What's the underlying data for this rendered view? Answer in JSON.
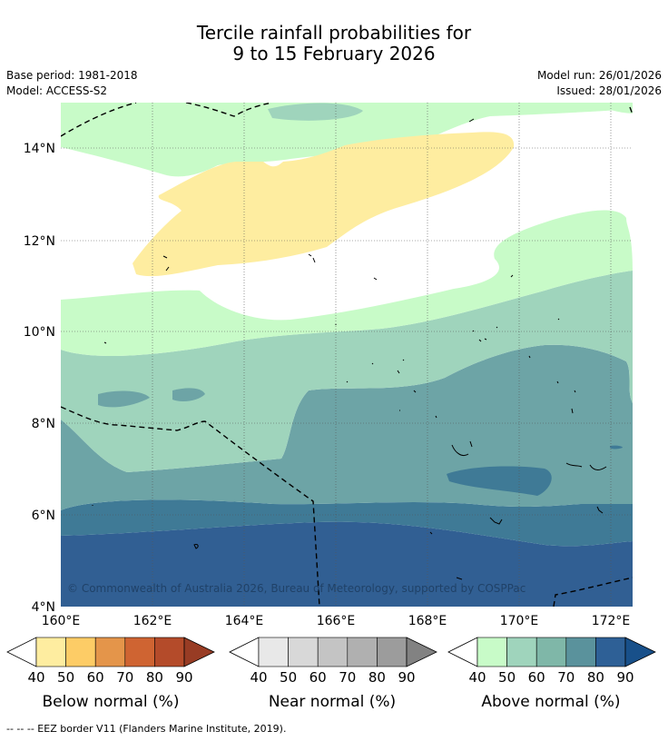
{
  "header": {
    "title_line1": "Tercile rainfall probabilities for",
    "title_line2": "9 to 15 February 2026",
    "base_period": "Base period: 1981-2018",
    "model": "Model: ACCESS-S2",
    "model_run": "Model run: 26/01/2026",
    "issued": "Issued: 28/01/2026"
  },
  "map": {
    "lat_labels": [
      "14°N",
      "12°N",
      "10°N",
      "8°N",
      "6°N",
      "4°N"
    ],
    "lon_labels": [
      "160°E",
      "162°E",
      "164°E",
      "166°E",
      "168°E",
      "170°E",
      "172°E"
    ],
    "copyright": "© Commonwealth of Australia 2026, Bureau of Meteorology, supported by COSPPac"
  },
  "colorbars": [
    {
      "name": "below",
      "title": "Below normal (%)",
      "ticks": [
        "40",
        "50",
        "60",
        "70",
        "80",
        "90"
      ],
      "under_color": "#ffffff",
      "colors": [
        "#feeda0",
        "#fdcc66",
        "#e4954a",
        "#cf6432",
        "#b44b2a"
      ],
      "over_color": "#983c24"
    },
    {
      "name": "near",
      "title": "Near normal (%)",
      "ticks": [
        "40",
        "50",
        "60",
        "70",
        "80",
        "90"
      ],
      "under_color": "#ffffff",
      "colors": [
        "#e8e8e8",
        "#d8d8d8",
        "#c4c4c4",
        "#b0b0b0",
        "#9c9c9c"
      ],
      "over_color": "#828282"
    },
    {
      "name": "above",
      "title": "Above normal (%)",
      "ticks": [
        "40",
        "50",
        "60",
        "70",
        "80",
        "90"
      ],
      "under_color": "#ffffff",
      "colors": [
        "#c8fbc8",
        "#9fd4bc",
        "#7fb7a8",
        "#5a929c",
        "#2e6096"
      ],
      "over_color": "#18508a"
    }
  ],
  "footnote": "--  --  -- EEZ border V11 (Flanders Marine Institute, 2019).",
  "palette": {
    "above_40": "#c8fbc8",
    "above_50": "#9fd4bc",
    "above_60": "#6da4a6",
    "above_70": "#3f7a96",
    "above_80": "#315f93",
    "below_40": "#feeda0"
  }
}
